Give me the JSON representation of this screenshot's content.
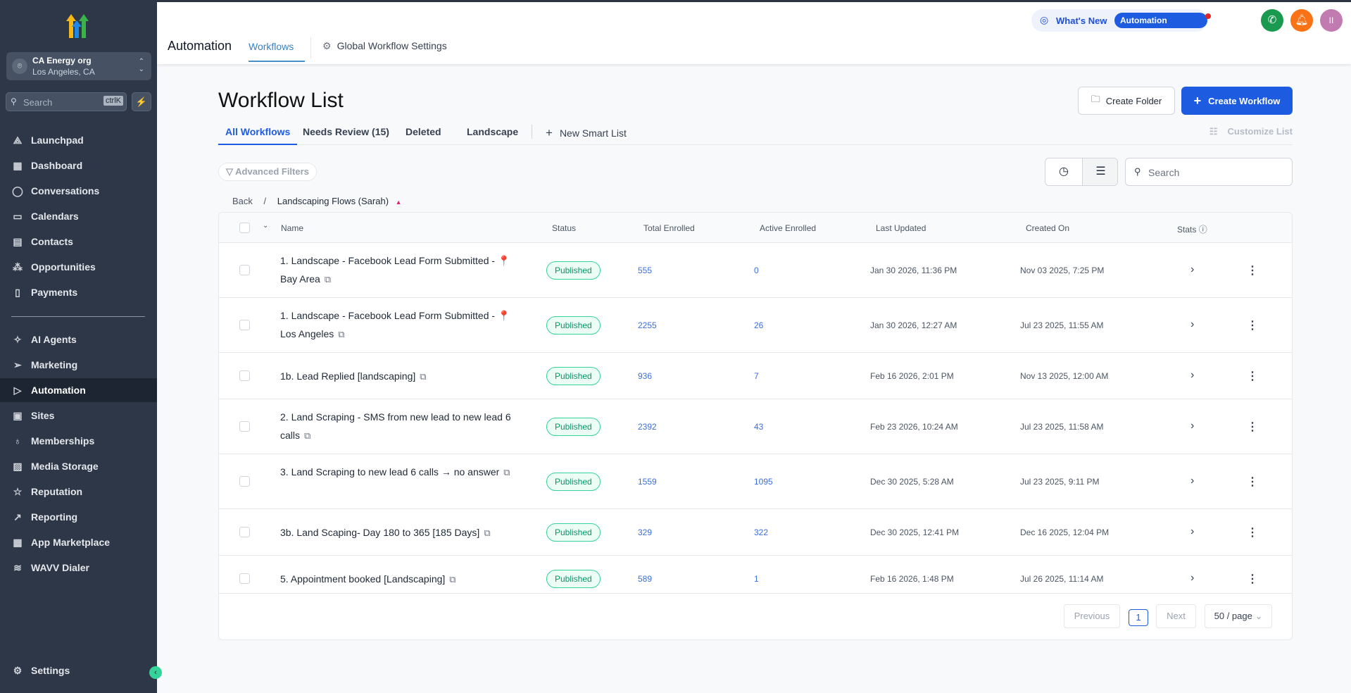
{
  "sidebar": {
    "org_name": "CA Energy org",
    "org_location": "Los Angeles, CA",
    "search_placeholder": "Search",
    "search_shortcut": "ctrlK",
    "items": [
      {
        "label": "Launchpad",
        "icon": "rocket-icon"
      },
      {
        "label": "Dashboard",
        "icon": "grid-icon"
      },
      {
        "label": "Conversations",
        "icon": "chat-icon"
      },
      {
        "label": "Calendars",
        "icon": "calendar-icon"
      },
      {
        "label": "Contacts",
        "icon": "contacts-icon"
      },
      {
        "label": "Opportunities",
        "icon": "opportunities-icon"
      },
      {
        "label": "Payments",
        "icon": "payments-icon"
      },
      {
        "label": "AI Agents",
        "icon": "sparkle-icon"
      },
      {
        "label": "Marketing",
        "icon": "send-icon"
      },
      {
        "label": "Automation",
        "icon": "automation-icon",
        "active": true
      },
      {
        "label": "Sites",
        "icon": "sites-icon"
      },
      {
        "label": "Memberships",
        "icon": "award-icon"
      },
      {
        "label": "Media Storage",
        "icon": "image-icon"
      },
      {
        "label": "Reputation",
        "icon": "star-icon"
      },
      {
        "label": "Reporting",
        "icon": "trend-icon"
      },
      {
        "label": "App Marketplace",
        "icon": "apps-icon"
      },
      {
        "label": "WAVV Dialer",
        "icon": "wavv-icon"
      }
    ],
    "settings": "Settings"
  },
  "header": {
    "title": "Automation",
    "tab_workflows": "Workflows",
    "tab_global": "Global Workflow Settings",
    "whats_new": "What's New",
    "updates_badge": "Automation Updates",
    "avatar_initials": "II",
    "colors": {
      "phone": "#1a9a4f",
      "bell": "#f97316",
      "avatar": "#c27bb0"
    }
  },
  "main": {
    "title": "Workflow List",
    "create_folder": "Create Folder",
    "create_workflow": "Create Workflow",
    "tabs": [
      "All Workflows",
      "Needs Review (15)",
      "Deleted",
      "Landscape"
    ],
    "new_smart_list": "New Smart List",
    "customize_list": "Customize List",
    "advanced_filters": "Advanced Filters",
    "search_placeholder": "Search",
    "breadcrumb": {
      "back": "Back",
      "sep": "/",
      "folder": "Landscaping Flows (Sarah)"
    },
    "columns": [
      "Name",
      "Status",
      "Total Enrolled",
      "Active Enrolled",
      "Last Updated",
      "Created On",
      "Stats"
    ],
    "rows": [
      {
        "name": "1. Landscape - Facebook Lead Form Submitted - 📍 Bay Area",
        "status": "Published",
        "total": "555",
        "active": "0",
        "updated": "Jan 30 2026, 11:36 PM",
        "created": "Nov 03 2025, 7:25 PM"
      },
      {
        "name": "1. Landscape - Facebook Lead Form Submitted - 📍 Los Angeles",
        "status": "Published",
        "total": "2255",
        "active": "26",
        "updated": "Jan 30 2026, 12:27 AM",
        "created": "Jul 23 2025, 11:55 AM"
      },
      {
        "name": "1b. Lead Replied [landscaping]",
        "status": "Published",
        "total": "936",
        "active": "7",
        "updated": "Feb 16 2026, 2:01 PM",
        "created": "Nov 13 2025, 12:00 AM"
      },
      {
        "name": "2. Land Scraping - SMS from new lead to new lead 6 calls",
        "status": "Published",
        "total": "2392",
        "active": "43",
        "updated": "Feb 23 2026, 10:24 AM",
        "created": "Jul 23 2025, 11:58 AM"
      },
      {
        "name": "3. Land Scraping to new lead 6 calls → no answer",
        "status": "Published",
        "total": "1559",
        "active": "1095",
        "updated": "Dec 30 2025, 5:28 AM",
        "created": "Jul 23 2025, 9:11 PM"
      },
      {
        "name": "3b. Land Scaping- Day 180 to 365 [185 Days]",
        "status": "Published",
        "total": "329",
        "active": "322",
        "updated": "Dec 30 2025, 12:41 PM",
        "created": "Dec 16 2025, 12:04 PM"
      },
      {
        "name": "5. Appointment booked [Landscaping]",
        "status": "Published",
        "total": "589",
        "active": "1",
        "updated": "Feb 16 2026, 1:48 PM",
        "created": "Jul 26 2025, 11:14 AM"
      }
    ],
    "pagination": {
      "previous": "Previous",
      "page": "1",
      "next": "Next",
      "per_page": "50 / page"
    }
  }
}
